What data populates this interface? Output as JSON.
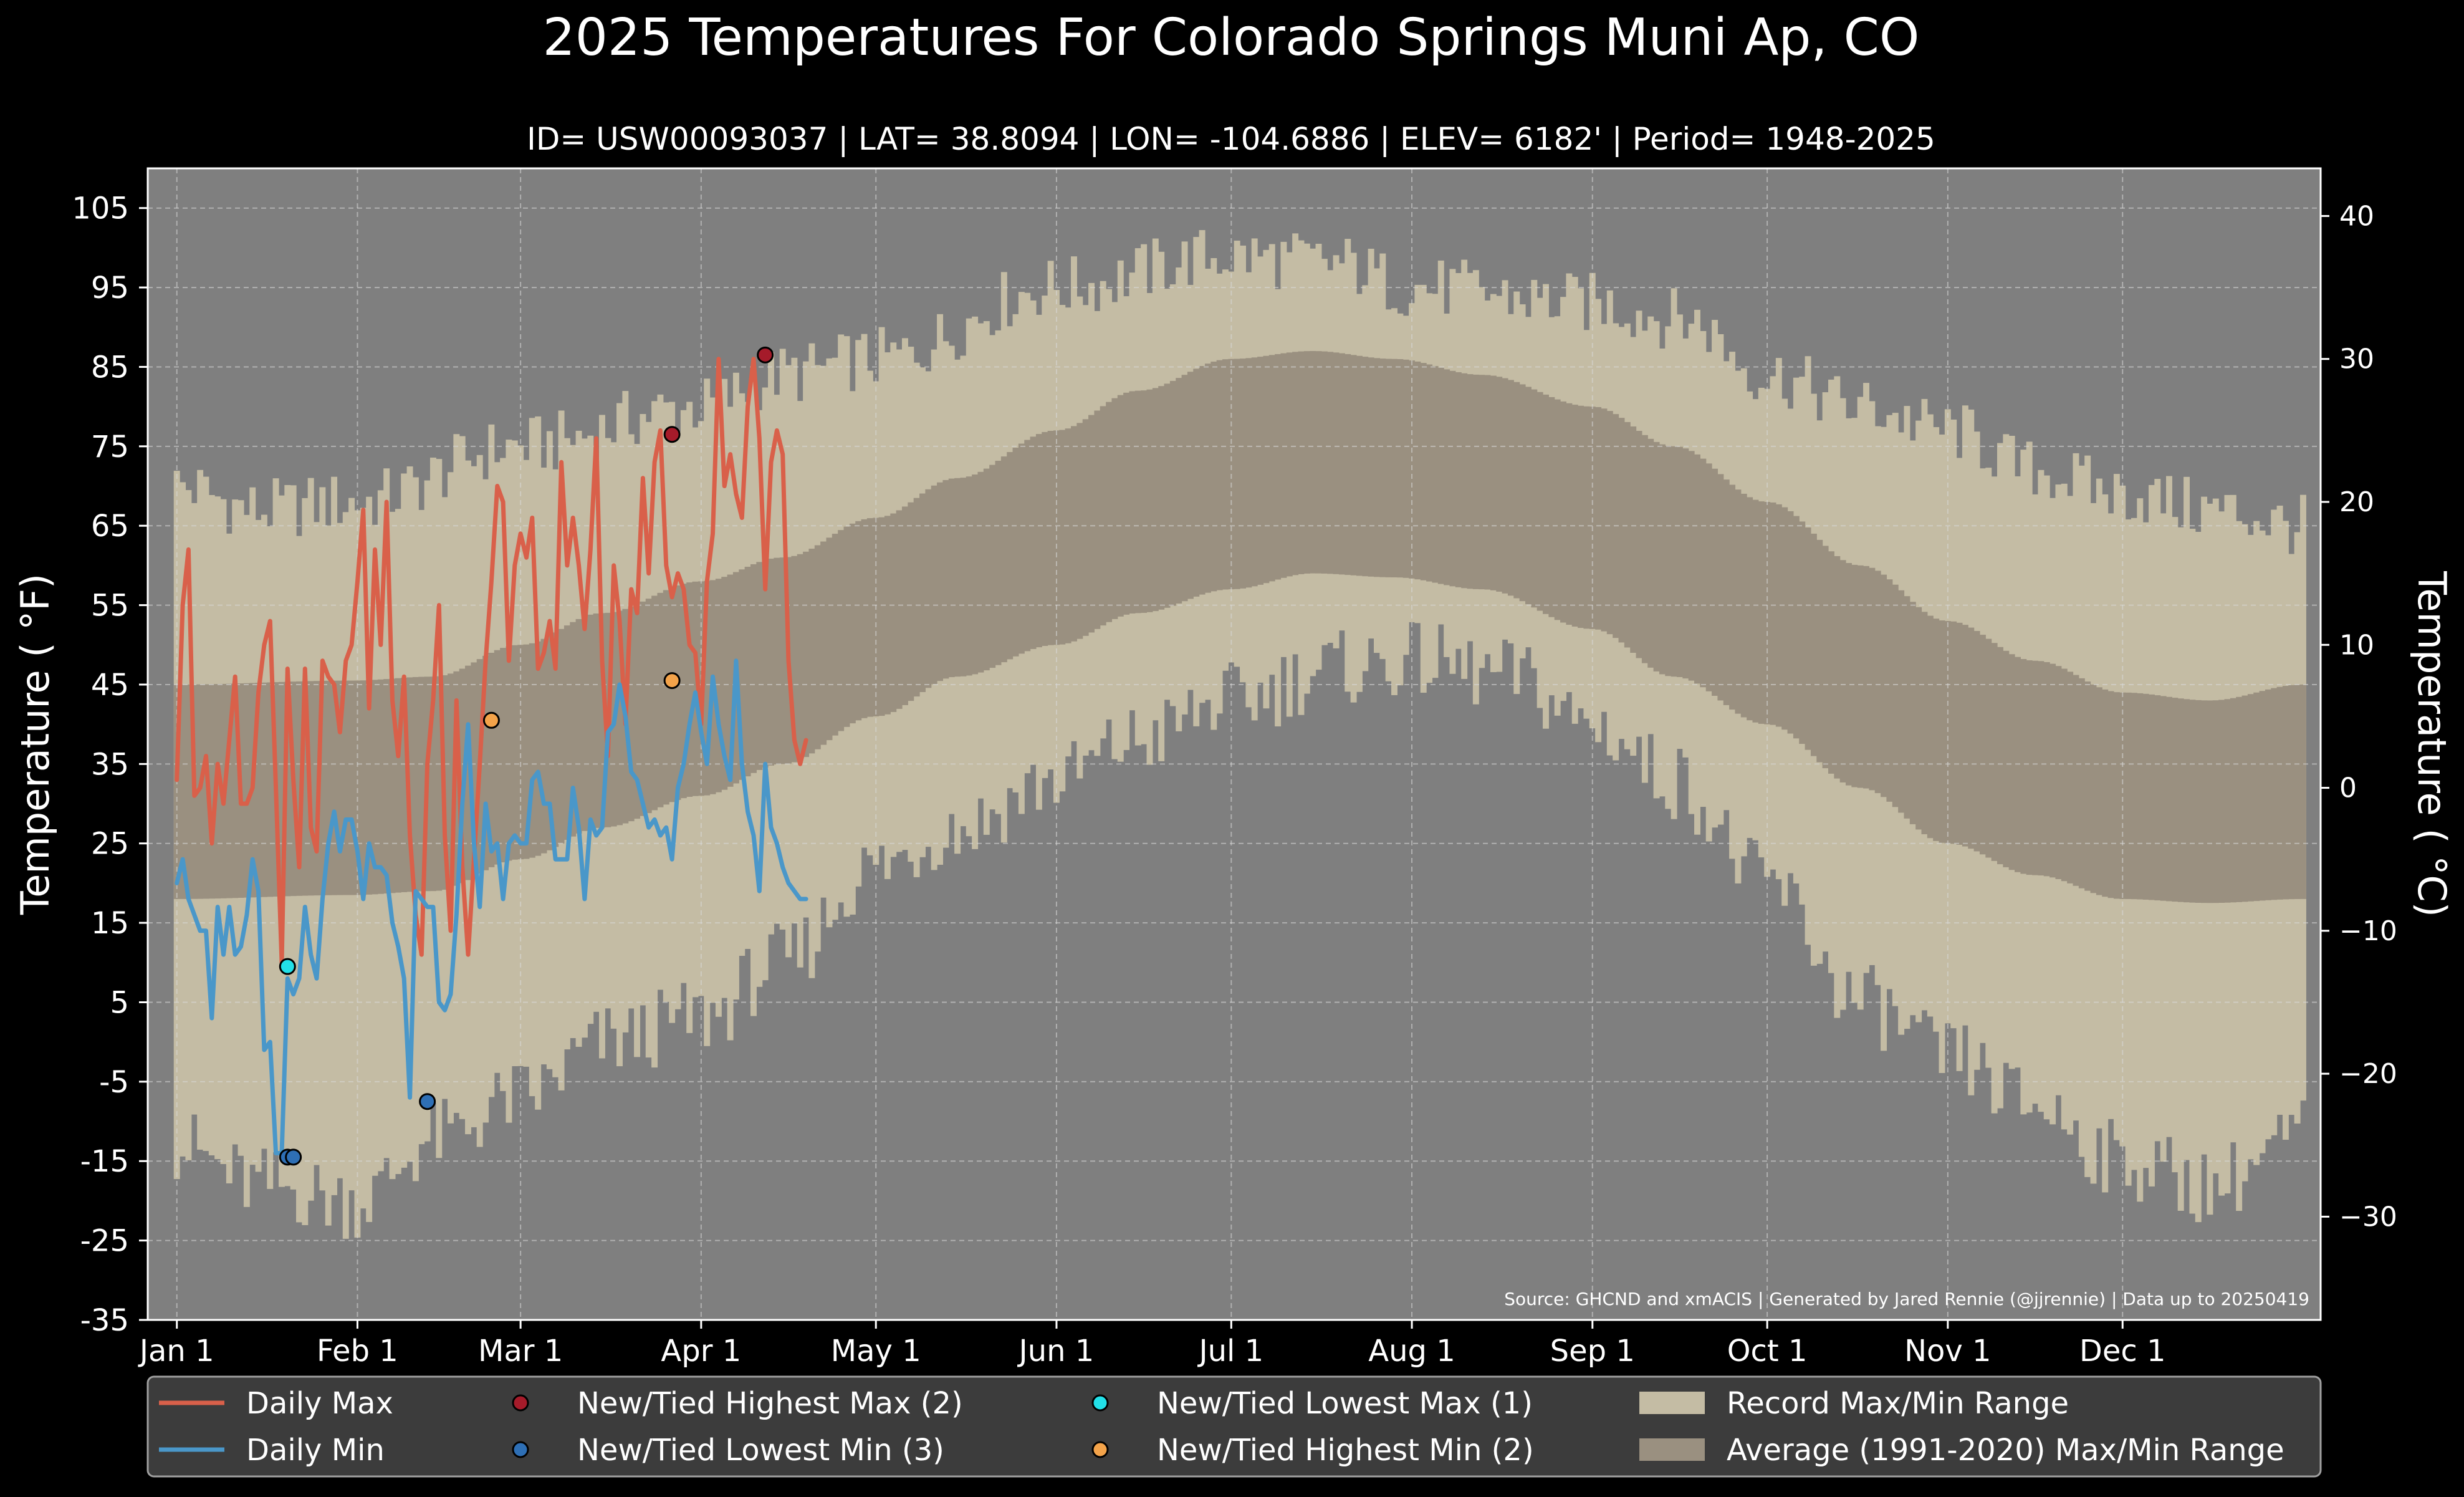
{
  "chart_data": {
    "type": "line",
    "title": "2025 Temperatures For Colorado Springs Muni Ap, CO",
    "subtitle": "ID= USW00093037 | LAT= 38.8094 | LON= -104.6886 | ELEV= 6182' | Period= 1948-2025",
    "ylabel_left": "Temperature ( °F)",
    "ylabel_right": "Temperature ( °C)",
    "source_note": "Source: GHCND and xmACIS | Generated by Jared Rennie (@jjrennie) | Data up to 20250419",
    "ylim_f": [
      -35,
      110
    ],
    "yticks_f": [
      105,
      95,
      85,
      75,
      65,
      55,
      45,
      35,
      25,
      15,
      5,
      -5,
      -15,
      -25,
      -35
    ],
    "yticks_c": [
      40,
      30,
      20,
      10,
      0,
      -10,
      -20,
      -30
    ],
    "yticks_c_labels": [
      "40",
      "30",
      "20",
      "10",
      "0",
      "−10",
      "−20",
      "−30"
    ],
    "xlim_day": [
      -4,
      369
    ],
    "xticks": [
      {
        "day": 1,
        "label": "Jan 1"
      },
      {
        "day": 32,
        "label": "Feb 1"
      },
      {
        "day": 60,
        "label": "Mar 1"
      },
      {
        "day": 91,
        "label": "Apr 1"
      },
      {
        "day": 121,
        "label": "May 1"
      },
      {
        "day": 152,
        "label": "Jun 1"
      },
      {
        "day": 182,
        "label": "Jul 1"
      },
      {
        "day": 213,
        "label": "Aug 1"
      },
      {
        "day": 244,
        "label": "Sep 1"
      },
      {
        "day": 274,
        "label": "Oct 1"
      },
      {
        "day": 305,
        "label": "Nov 1"
      },
      {
        "day": 335,
        "label": "Dec 1"
      }
    ],
    "grid": true,
    "legend_position": "bottom",
    "record_max_anchors": [
      [
        1,
        70
      ],
      [
        15,
        67
      ],
      [
        32,
        68
      ],
      [
        60,
        75
      ],
      [
        91,
        80
      ],
      [
        105,
        84
      ],
      [
        121,
        86
      ],
      [
        152,
        95
      ],
      [
        182,
        99
      ],
      [
        200,
        98
      ],
      [
        213,
        95
      ],
      [
        244,
        93
      ],
      [
        260,
        91
      ],
      [
        274,
        84
      ],
      [
        290,
        80
      ],
      [
        305,
        77
      ],
      [
        320,
        72
      ],
      [
        335,
        69
      ],
      [
        350,
        67
      ],
      [
        366,
        65
      ]
    ],
    "record_min_anchors": [
      [
        1,
        -13
      ],
      [
        15,
        -18
      ],
      [
        32,
        -20
      ],
      [
        46,
        -12
      ],
      [
        60,
        -7
      ],
      [
        75,
        0
      ],
      [
        91,
        3
      ],
      [
        105,
        10
      ],
      [
        121,
        22
      ],
      [
        135,
        27
      ],
      [
        152,
        33
      ],
      [
        166,
        38
      ],
      [
        182,
        43
      ],
      [
        200,
        47
      ],
      [
        213,
        48
      ],
      [
        230,
        46
      ],
      [
        244,
        40
      ],
      [
        258,
        33
      ],
      [
        274,
        20
      ],
      [
        290,
        5
      ],
      [
        305,
        -2
      ],
      [
        320,
        -8
      ],
      [
        335,
        -15
      ],
      [
        350,
        -18
      ],
      [
        366,
        -12
      ]
    ],
    "avg_max_anchors": [
      [
        1,
        45
      ],
      [
        31,
        45.5
      ],
      [
        45,
        46
      ],
      [
        60,
        50
      ],
      [
        74,
        54
      ],
      [
        91,
        58
      ],
      [
        105,
        61
      ],
      [
        121,
        66
      ],
      [
        135,
        71
      ],
      [
        152,
        77
      ],
      [
        166,
        82
      ],
      [
        182,
        86
      ],
      [
        196,
        87
      ],
      [
        210,
        86
      ],
      [
        225,
        84
      ],
      [
        244,
        80
      ],
      [
        258,
        75
      ],
      [
        274,
        68
      ],
      [
        290,
        60
      ],
      [
        305,
        53
      ],
      [
        320,
        48
      ],
      [
        335,
        44
      ],
      [
        350,
        43
      ],
      [
        366,
        45
      ]
    ],
    "avg_min_anchors": [
      [
        1,
        18
      ],
      [
        31,
        18.5
      ],
      [
        45,
        19
      ],
      [
        60,
        23
      ],
      [
        74,
        27
      ],
      [
        91,
        31
      ],
      [
        105,
        35
      ],
      [
        121,
        41
      ],
      [
        135,
        46
      ],
      [
        152,
        50
      ],
      [
        166,
        54
      ],
      [
        182,
        57
      ],
      [
        196,
        59
      ],
      [
        210,
        58.5
      ],
      [
        225,
        57
      ],
      [
        244,
        52
      ],
      [
        258,
        46
      ],
      [
        274,
        40
      ],
      [
        290,
        32
      ],
      [
        305,
        25
      ],
      [
        320,
        21
      ],
      [
        335,
        18
      ],
      [
        350,
        17.5
      ],
      [
        366,
        18
      ]
    ],
    "series": [
      {
        "name": "Daily Max",
        "color": "#d9604a",
        "x": [
          1,
          2,
          3,
          4,
          5,
          6,
          7,
          8,
          9,
          10,
          11,
          12,
          13,
          14,
          15,
          16,
          17,
          18,
          19,
          20,
          21,
          22,
          23,
          24,
          25,
          26,
          27,
          28,
          29,
          30,
          31,
          32,
          33,
          34,
          35,
          36,
          37,
          38,
          39,
          40,
          41,
          42,
          43,
          44,
          45,
          46,
          47,
          48,
          49,
          50,
          51,
          52,
          53,
          54,
          55,
          56,
          57,
          58,
          59,
          60,
          61,
          62,
          63,
          64,
          65,
          66,
          67,
          68,
          69,
          70,
          71,
          72,
          73,
          74,
          75,
          76,
          77,
          78,
          79,
          80,
          81,
          82,
          83,
          84,
          85,
          86,
          87,
          88,
          89,
          90,
          91,
          92,
          93,
          94,
          95,
          96,
          97,
          98,
          99,
          100,
          101,
          102,
          103,
          104,
          105,
          106,
          107,
          108,
          109
        ],
        "values": [
          33,
          55,
          62,
          31,
          32,
          36,
          25,
          35,
          30,
          38,
          46,
          30,
          30,
          32,
          44,
          50,
          53,
          32,
          10,
          47,
          33,
          22,
          47,
          27,
          24,
          48,
          46,
          45,
          39,
          48,
          50,
          58,
          67,
          42,
          62,
          50,
          68,
          43,
          36,
          46,
          26,
          16,
          11,
          35,
          43,
          55,
          26,
          14,
          43,
          22,
          11,
          23,
          35,
          48,
          58,
          70,
          68,
          48,
          60,
          64,
          61,
          66,
          47,
          49,
          53,
          47,
          73,
          60,
          66,
          60,
          52,
          62,
          76,
          48,
          36,
          60,
          53,
          40,
          57,
          54,
          71,
          59,
          73,
          77,
          60,
          56,
          59,
          57,
          50,
          49,
          40,
          58,
          64,
          86,
          70,
          74,
          69,
          66,
          80,
          86,
          76,
          57,
          73,
          77,
          74,
          48,
          38,
          35,
          38
        ]
      },
      {
        "name": "Daily Min",
        "color": "#4a97c9",
        "x": [
          1,
          2,
          3,
          4,
          5,
          6,
          7,
          8,
          9,
          10,
          11,
          12,
          13,
          14,
          15,
          16,
          17,
          18,
          19,
          20,
          21,
          22,
          23,
          24,
          25,
          26,
          27,
          28,
          29,
          30,
          31,
          32,
          33,
          34,
          35,
          36,
          37,
          38,
          39,
          40,
          41,
          42,
          43,
          44,
          45,
          46,
          47,
          48,
          49,
          50,
          51,
          52,
          53,
          54,
          55,
          56,
          57,
          58,
          59,
          60,
          61,
          62,
          63,
          64,
          65,
          66,
          67,
          68,
          69,
          70,
          71,
          72,
          73,
          74,
          75,
          76,
          77,
          78,
          79,
          80,
          81,
          82,
          83,
          84,
          85,
          86,
          87,
          88,
          89,
          90,
          91,
          92,
          93,
          94,
          95,
          96,
          97,
          98,
          99,
          100,
          101,
          102,
          103,
          104,
          105,
          106,
          107,
          108,
          109
        ],
        "values": [
          20,
          23,
          18,
          16,
          14,
          14,
          3,
          17,
          11,
          17,
          11,
          12,
          16,
          23,
          19,
          -1,
          0,
          -14,
          -14,
          8,
          6,
          8,
          17,
          11,
          8,
          18,
          25,
          29,
          24,
          28,
          28,
          24,
          18,
          25,
          22,
          22,
          21,
          15,
          12,
          8,
          -7,
          19,
          18,
          17,
          17,
          5,
          4,
          6,
          16,
          30,
          40,
          25,
          17,
          30,
          24,
          25,
          18,
          25,
          26,
          25,
          25,
          33,
          34,
          30,
          30,
          23,
          23,
          23,
          32,
          27,
          18,
          28,
          26,
          27,
          39,
          40,
          45,
          41,
          34,
          33,
          30,
          27,
          28,
          26,
          27,
          23,
          32,
          35,
          40,
          44,
          39,
          35,
          46,
          40,
          36,
          33,
          48,
          35,
          29,
          26,
          19,
          35,
          27,
          25,
          22,
          20,
          19,
          18,
          18
        ]
      }
    ],
    "record_markers": [
      {
        "name": "New/Tied Highest Max",
        "color": "#a51b2a",
        "points": [
          {
            "day": 86,
            "value": 76.5
          },
          {
            "day": 102,
            "value": 86.5
          }
        ]
      },
      {
        "name": "New/Tied Lowest Min",
        "color": "#2e6fb5",
        "points": [
          {
            "day": 20,
            "value": -14.5
          },
          {
            "day": 21,
            "value": -14.5
          },
          {
            "day": 44,
            "value": -7.5
          }
        ]
      },
      {
        "name": "New/Tied Lowest Max",
        "color": "#22e0e8",
        "points": [
          {
            "day": 20,
            "value": 9.5
          }
        ]
      },
      {
        "name": "New/Tied Highest Min",
        "color": "#f3a34a",
        "points": [
          {
            "day": 55,
            "value": 40.5
          },
          {
            "day": 86,
            "value": 45.5
          }
        ]
      }
    ],
    "legend": [
      {
        "label": "Daily Max",
        "kind": "line",
        "color": "#d9604a"
      },
      {
        "label": "Daily Min",
        "kind": "line",
        "color": "#4a97c9"
      },
      {
        "label": "New/Tied Highest Max (2)",
        "kind": "marker",
        "color": "#a51b2a"
      },
      {
        "label": "New/Tied Lowest Min (3)",
        "kind": "marker",
        "color": "#2e6fb5"
      },
      {
        "label": "New/Tied Lowest Max (1)",
        "kind": "marker",
        "color": "#22e0e8"
      },
      {
        "label": "New/Tied Highest Min (2)",
        "kind": "marker",
        "color": "#f3a34a"
      },
      {
        "label": "Record Max/Min Range",
        "kind": "patch",
        "color": "#c4bca4"
      },
      {
        "label": "Average (1991-2020) Max/Min Range",
        "kind": "patch",
        "color": "#9a9080"
      }
    ],
    "colors": {
      "background": "#000000",
      "plot_background": "#7f7f7f",
      "record_band": "#c4bca4",
      "average_band": "#9a9080",
      "legend_background": "#3c3c3c"
    }
  }
}
